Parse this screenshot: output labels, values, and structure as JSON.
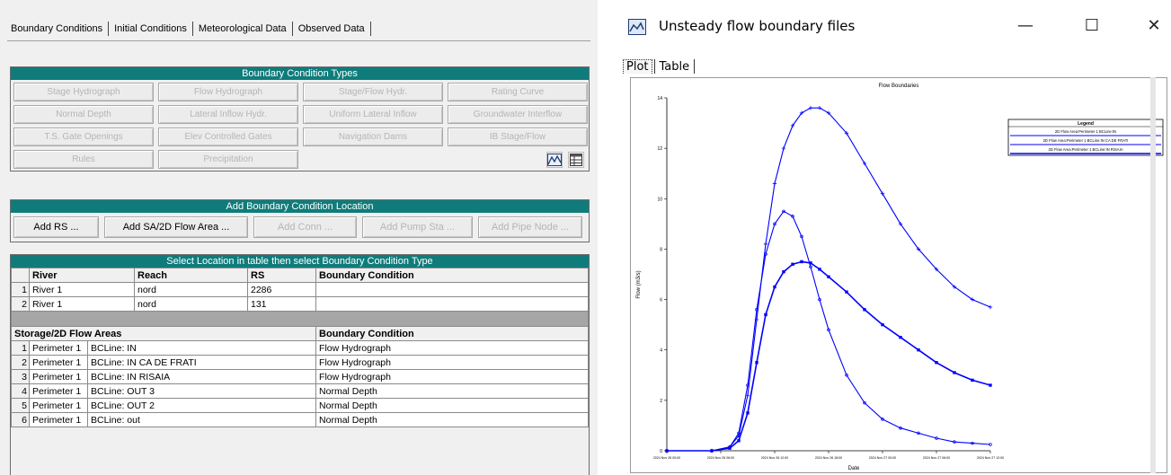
{
  "left_panel": {
    "tabs": [
      "Boundary Conditions",
      "Initial Conditions",
      "Meteorological Data",
      "Observed Data"
    ],
    "bct_title": "Boundary Condition Types",
    "bct_buttons": [
      "Stage Hydrograph",
      "Flow Hydrograph",
      "Stage/Flow Hydr.",
      "Rating Curve",
      "Normal Depth",
      "Lateral Inflow Hydr.",
      "Uniform Lateral Inflow",
      "Groundwater Interflow",
      "T.S. Gate Openings",
      "Elev Controlled Gates",
      "Navigation Dams",
      "IB Stage/Flow",
      "Rules",
      "Precipitation"
    ],
    "add_title": "Add Boundary Condition Location",
    "add_buttons": [
      {
        "label": "Add RS ...",
        "enabled": true
      },
      {
        "label": "Add SA/2D Flow Area ...",
        "enabled": true
      },
      {
        "label": "Add Conn ...",
        "enabled": false
      },
      {
        "label": "Add Pump Sta ...",
        "enabled": false
      },
      {
        "label": "Add Pipe Node ...",
        "enabled": false
      }
    ],
    "select_title": "Select Location in table then select Boundary Condition Type",
    "river_table": {
      "headers": [
        "River",
        "Reach",
        "RS",
        "Boundary Condition"
      ],
      "rows": [
        {
          "idx": "1",
          "river": "River 1",
          "reach": "nord",
          "rs": "2286",
          "bc": ""
        },
        {
          "idx": "2",
          "river": "River 1",
          "reach": "nord",
          "rs": "131",
          "bc": ""
        }
      ]
    },
    "storage_table": {
      "headers": [
        "Storage/2D Flow Areas",
        "Boundary Condition"
      ],
      "rows": [
        {
          "idx": "1",
          "area": "Perimeter 1",
          "line": "BCLine: IN",
          "bc": "Flow Hydrograph"
        },
        {
          "idx": "2",
          "area": "Perimeter 1",
          "line": "BCLine: IN CA DE FRATI",
          "bc": "Flow Hydrograph"
        },
        {
          "idx": "3",
          "area": "Perimeter 1",
          "line": "BCLine: IN RISAIA",
          "bc": "Flow Hydrograph"
        },
        {
          "idx": "4",
          "area": "Perimeter 1",
          "line": "BCLine: OUT 3",
          "bc": "Normal Depth"
        },
        {
          "idx": "5",
          "area": "Perimeter 1",
          "line": "BCLine: OUT 2",
          "bc": "Normal Depth"
        },
        {
          "idx": "6",
          "area": "Perimeter 1",
          "line": "BCLine: out",
          "bc": "Normal Depth"
        }
      ]
    }
  },
  "right_window": {
    "title": "Unsteady flow boundary files",
    "controls": {
      "minimize": "—",
      "maximize": "☐",
      "close": "✕"
    },
    "plot_tabs": [
      "Plot",
      "Table"
    ],
    "active_tab": "Plot"
  },
  "colors": {
    "accent_teal": "#0f7c7b",
    "series_blue": "#0000ff"
  },
  "chart_data": {
    "type": "line",
    "title": "Flow Boundaries",
    "xlabel": "Date",
    "ylabel": "Flow (m3/s)",
    "xlim": [
      0,
      72
    ],
    "ylim": [
      0,
      14
    ],
    "x_ticks": [
      {
        "x": 0,
        "label": "2024 Nov 26 00:00"
      },
      {
        "x": 12,
        "label": "2024 Nov 26 06:00"
      },
      {
        "x": 24,
        "label": "2024 Nov 26 12:00"
      },
      {
        "x": 36,
        "label": "2024 Nov 26 18:00"
      },
      {
        "x": 48,
        "label": "2024 Nov 27 00:00"
      },
      {
        "x": 60,
        "label": "2024 Nov 27 06:00"
      },
      {
        "x": 72,
        "label": "2024 Nov 27 12:00"
      }
    ],
    "y_ticks": [
      0,
      2,
      4,
      6,
      8,
      10,
      12,
      14
    ],
    "legend_title": "Legend",
    "legend_position": "top-right",
    "series": [
      {
        "name": "2D Flow Area:Perimeter 1 BCLine:IN",
        "marker": "plus",
        "x": [
          0,
          10,
          14,
          16,
          18,
          20,
          22,
          24,
          26,
          28,
          30,
          32,
          34,
          36,
          40,
          44,
          48,
          52,
          56,
          60,
          64,
          68,
          72
        ],
        "y": [
          0,
          0,
          0.15,
          0.6,
          2.2,
          5.2,
          8.2,
          10.6,
          12.0,
          12.9,
          13.4,
          13.6,
          13.6,
          13.4,
          12.6,
          11.4,
          10.2,
          9.0,
          8.0,
          7.2,
          6.5,
          6.0,
          5.7
        ]
      },
      {
        "name": "2D Flow Area:Perimeter 1 BCLine:IN CA DE FRATI",
        "marker": "circle",
        "x": [
          0,
          10,
          14,
          16,
          18,
          20,
          22,
          24,
          26,
          28,
          30,
          32,
          34,
          36,
          40,
          44,
          48,
          52,
          56,
          60,
          64,
          68,
          72
        ],
        "y": [
          0,
          0,
          0.15,
          0.7,
          2.6,
          5.6,
          7.8,
          9.0,
          9.5,
          9.3,
          8.5,
          7.3,
          6.0,
          4.8,
          3.0,
          1.9,
          1.25,
          0.9,
          0.7,
          0.5,
          0.35,
          0.3,
          0.25
        ]
      },
      {
        "name": "2D Flow Area:Perimeter 1 BCLine:IN RISAIA",
        "marker": "square",
        "x": [
          0,
          10,
          14,
          16,
          18,
          20,
          22,
          24,
          26,
          28,
          30,
          32,
          34,
          36,
          40,
          44,
          48,
          52,
          56,
          60,
          64,
          68,
          72
        ],
        "y": [
          0,
          0,
          0.1,
          0.4,
          1.5,
          3.5,
          5.4,
          6.5,
          7.1,
          7.4,
          7.5,
          7.45,
          7.2,
          6.9,
          6.3,
          5.6,
          5.0,
          4.5,
          4.0,
          3.5,
          3.1,
          2.8,
          2.6
        ]
      }
    ]
  }
}
